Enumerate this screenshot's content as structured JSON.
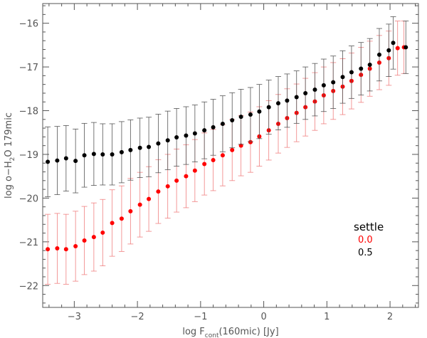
{
  "chart_data": {
    "type": "scatter",
    "title": "",
    "xlabel_parts": {
      "prefix": "log F",
      "sub": "cont",
      "suffix": "(160mic)  [Jy]"
    },
    "ylabel_parts": {
      "prefix": "log o−H",
      "sub": "2",
      "suffix": "O  179mic"
    },
    "xlim": [
      -3.5,
      2.45
    ],
    "ylim": [
      -22.5,
      -15.55
    ],
    "xticks": [
      -3,
      -2,
      -1,
      0,
      1,
      2
    ],
    "yticks": [
      -22,
      -21,
      -20,
      -19,
      -18,
      -17,
      -16
    ],
    "xtick_labels": [
      "−3",
      "−2",
      "−1",
      "0",
      "1",
      "2"
    ],
    "ytick_labels": [
      "−22",
      "−21",
      "−20",
      "−19",
      "−18",
      "−17",
      "−16"
    ],
    "legend": {
      "title": "settle",
      "placement": "right",
      "entries": [
        {
          "label": "0.0",
          "color": "#ff0000"
        },
        {
          "label": "0.5",
          "color": "#000000"
        }
      ]
    },
    "series": [
      {
        "name": "0.0",
        "color": "#ff0000",
        "errorbar_color": "#f08080",
        "points": [
          [
            -3.42,
            -21.17,
            0.8
          ],
          [
            -3.27,
            -21.15,
            0.8
          ],
          [
            -3.13,
            -21.17,
            0.8
          ],
          [
            -2.98,
            -21.1,
            0.8
          ],
          [
            -2.84,
            -20.97,
            0.78
          ],
          [
            -2.69,
            -20.89,
            0.78
          ],
          [
            -2.55,
            -20.79,
            0.76
          ],
          [
            -2.4,
            -20.57,
            0.76
          ],
          [
            -2.25,
            -20.47,
            0.75
          ],
          [
            -2.11,
            -20.3,
            0.75
          ],
          [
            -1.96,
            -20.15,
            0.74
          ],
          [
            -1.82,
            -20.02,
            0.74
          ],
          [
            -1.67,
            -19.85,
            0.73
          ],
          [
            -1.52,
            -19.73,
            0.73
          ],
          [
            -1.38,
            -19.6,
            0.72
          ],
          [
            -1.23,
            -19.5,
            0.72
          ],
          [
            -1.09,
            -19.37,
            0.71
          ],
          [
            -0.94,
            -19.22,
            0.71
          ],
          [
            -0.8,
            -19.13,
            0.7
          ],
          [
            -0.65,
            -19.02,
            0.7
          ],
          [
            -0.5,
            -18.9,
            0.7
          ],
          [
            -0.36,
            -18.8,
            0.69
          ],
          [
            -0.21,
            -18.72,
            0.69
          ],
          [
            -0.07,
            -18.59,
            0.68
          ],
          [
            0.08,
            -18.45,
            0.68
          ],
          [
            0.23,
            -18.3,
            0.67
          ],
          [
            0.37,
            -18.17,
            0.67
          ],
          [
            0.52,
            -18.05,
            0.66
          ],
          [
            0.66,
            -17.92,
            0.66
          ],
          [
            0.81,
            -17.79,
            0.66
          ],
          [
            0.95,
            -17.65,
            0.65
          ],
          [
            1.1,
            -17.55,
            0.65
          ],
          [
            1.25,
            -17.45,
            0.64
          ],
          [
            1.39,
            -17.32,
            0.64
          ],
          [
            1.54,
            -17.18,
            0.63
          ],
          [
            1.68,
            -17.04,
            0.63
          ],
          [
            1.83,
            -16.9,
            0.62
          ],
          [
            1.98,
            -16.8,
            0.62
          ],
          [
            2.12,
            -16.57,
            0.62
          ],
          [
            2.22,
            -16.55,
            0.6
          ]
        ]
      },
      {
        "name": "0.5",
        "color": "#000000",
        "errorbar_color": "#555555",
        "points": [
          [
            -3.42,
            -19.17,
            0.8
          ],
          [
            -3.27,
            -19.14,
            0.78
          ],
          [
            -3.13,
            -19.09,
            0.75
          ],
          [
            -2.98,
            -19.15,
            0.73
          ],
          [
            -2.84,
            -19.02,
            0.73
          ],
          [
            -2.69,
            -18.99,
            0.72
          ],
          [
            -2.55,
            -19.0,
            0.7
          ],
          [
            -2.4,
            -19.0,
            0.7
          ],
          [
            -2.25,
            -18.95,
            0.7
          ],
          [
            -2.11,
            -18.9,
            0.69
          ],
          [
            -1.96,
            -18.85,
            0.68
          ],
          [
            -1.82,
            -18.83,
            0.68
          ],
          [
            -1.67,
            -18.75,
            0.67
          ],
          [
            -1.52,
            -18.68,
            0.67
          ],
          [
            -1.38,
            -18.61,
            0.66
          ],
          [
            -1.23,
            -18.57,
            0.66
          ],
          [
            -1.09,
            -18.52,
            0.65
          ],
          [
            -0.94,
            -18.45,
            0.65
          ],
          [
            -0.8,
            -18.38,
            0.64
          ],
          [
            -0.65,
            -18.3,
            0.64
          ],
          [
            -0.5,
            -18.22,
            0.63
          ],
          [
            -0.36,
            -18.14,
            0.63
          ],
          [
            -0.21,
            -18.09,
            0.62
          ],
          [
            -0.07,
            -18.02,
            0.62
          ],
          [
            0.08,
            -17.92,
            0.62
          ],
          [
            0.23,
            -17.83,
            0.61
          ],
          [
            0.37,
            -17.77,
            0.61
          ],
          [
            0.52,
            -17.69,
            0.6
          ],
          [
            0.66,
            -17.6,
            0.6
          ],
          [
            0.81,
            -17.52,
            0.6
          ],
          [
            0.95,
            -17.42,
            0.6
          ],
          [
            1.1,
            -17.35,
            0.6
          ],
          [
            1.25,
            -17.23,
            0.6
          ],
          [
            1.39,
            -17.12,
            0.6
          ],
          [
            1.54,
            -17.04,
            0.6
          ],
          [
            1.68,
            -16.95,
            0.6
          ],
          [
            1.83,
            -16.72,
            0.6
          ],
          [
            1.98,
            -16.62,
            0.6
          ],
          [
            2.05,
            -16.45,
            0.6
          ],
          [
            2.25,
            -16.55,
            0.6
          ]
        ]
      }
    ]
  }
}
